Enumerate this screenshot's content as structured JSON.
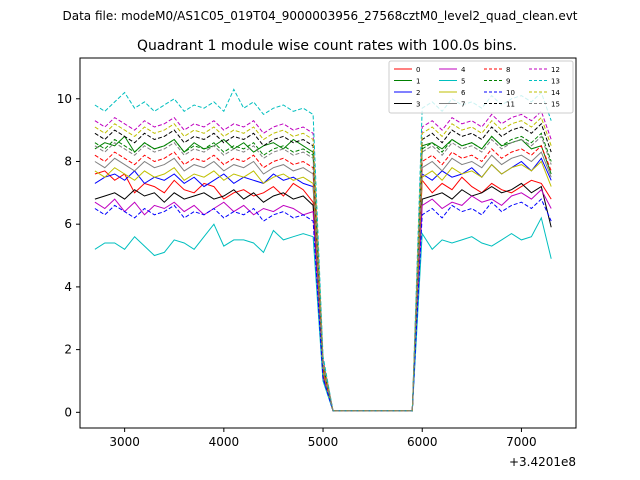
{
  "header": {
    "data_file": "Data file: modeM0/AS1C05_019T04_9000003956_27568cztM0_level2_quad_clean.evt"
  },
  "chart_data": {
    "type": "line",
    "title": "Quadrant 1 module wise count rates with 100.0s bins.",
    "xlabel": "",
    "ylabel": "",
    "x_offset_label": "+3.4201e8",
    "xlim": [
      2550,
      7550
    ],
    "ylim": [
      -0.5,
      11.3
    ],
    "xticks": [
      3000,
      4000,
      5000,
      6000,
      7000
    ],
    "yticks": [
      0,
      2,
      4,
      6,
      8,
      10
    ],
    "grid": false,
    "legend_position": "top-right",
    "legend_columns": 4,
    "x": [
      2700,
      2800,
      2900,
      3000,
      3100,
      3200,
      3300,
      3400,
      3500,
      3600,
      3700,
      3800,
      3900,
      4000,
      4100,
      4200,
      4300,
      4400,
      4500,
      4600,
      4700,
      4800,
      4900,
      5000,
      5100,
      5200,
      5300,
      5400,
      5500,
      5600,
      5700,
      5800,
      5900,
      6000,
      6100,
      6200,
      6300,
      6400,
      6500,
      6600,
      6700,
      6800,
      6900,
      7000,
      7100,
      7200,
      7300
    ],
    "series": [
      {
        "name": "0",
        "color": "#ff0000",
        "dash": "solid",
        "values": [
          7.6,
          7.7,
          7.4,
          7.6,
          7.0,
          7.3,
          7.2,
          7.0,
          7.4,
          7.1,
          7.0,
          7.3,
          7.2,
          6.8,
          7.0,
          7.1,
          6.9,
          7.0,
          7.2,
          6.9,
          7.3,
          7.1,
          6.7,
          1.2,
          0.05,
          0.05,
          0.05,
          0.05,
          0.05,
          0.05,
          0.05,
          0.05,
          0.05,
          7.4,
          7.0,
          7.3,
          7.1,
          7.5,
          7.2,
          7.0,
          7.3,
          7.1,
          7.0,
          7.2,
          7.4,
          7.3,
          6.8
        ]
      },
      {
        "name": "1",
        "color": "#008000",
        "dash": "solid",
        "values": [
          8.4,
          8.6,
          8.5,
          8.8,
          8.3,
          8.6,
          8.4,
          8.5,
          8.7,
          8.3,
          8.6,
          8.4,
          8.5,
          8.7,
          8.4,
          8.6,
          8.3,
          8.5,
          8.6,
          8.4,
          8.7,
          8.5,
          8.3,
          1.5,
          0.05,
          0.05,
          0.05,
          0.05,
          0.05,
          0.05,
          0.05,
          0.05,
          0.05,
          8.5,
          8.6,
          8.4,
          8.7,
          8.5,
          8.6,
          8.4,
          8.8,
          8.5,
          8.6,
          8.7,
          8.4,
          8.5,
          7.6
        ]
      },
      {
        "name": "2",
        "color": "#0000ff",
        "dash": "solid",
        "values": [
          7.3,
          7.5,
          7.6,
          7.4,
          7.7,
          7.3,
          7.5,
          7.4,
          7.6,
          7.3,
          7.5,
          7.2,
          7.4,
          7.6,
          7.3,
          7.5,
          7.4,
          7.3,
          7.6,
          7.4,
          7.5,
          7.3,
          7.2,
          1.3,
          0.05,
          0.05,
          0.05,
          0.05,
          0.05,
          0.05,
          0.05,
          0.05,
          0.05,
          7.6,
          7.4,
          7.7,
          7.5,
          7.6,
          7.8,
          7.5,
          7.9,
          7.6,
          7.8,
          8.0,
          7.7,
          8.1,
          7.4
        ]
      },
      {
        "name": "3",
        "color": "#000000",
        "dash": "solid",
        "values": [
          6.8,
          6.9,
          7.0,
          6.8,
          7.1,
          6.9,
          7.0,
          6.7,
          7.0,
          6.8,
          6.9,
          7.0,
          6.8,
          6.9,
          7.1,
          6.8,
          7.0,
          6.7,
          6.9,
          7.0,
          6.8,
          6.9,
          6.6,
          1.1,
          0.05,
          0.05,
          0.05,
          0.05,
          0.05,
          0.05,
          0.05,
          0.05,
          0.05,
          6.8,
          6.9,
          7.0,
          6.8,
          7.1,
          6.9,
          7.0,
          7.2,
          7.0,
          7.1,
          7.3,
          7.0,
          7.2,
          5.9
        ]
      },
      {
        "name": "4",
        "color": "#bf00bf",
        "dash": "solid",
        "values": [
          6.7,
          6.5,
          6.8,
          6.4,
          6.7,
          6.3,
          6.6,
          6.5,
          6.7,
          6.4,
          6.6,
          6.3,
          6.5,
          6.7,
          6.4,
          6.6,
          6.3,
          6.5,
          6.4,
          6.6,
          6.5,
          6.3,
          6.4,
          1.1,
          0.05,
          0.05,
          0.05,
          0.05,
          0.05,
          0.05,
          0.05,
          0.05,
          0.05,
          6.6,
          6.8,
          6.5,
          6.7,
          6.6,
          6.9,
          6.7,
          6.8,
          6.6,
          6.9,
          7.0,
          6.8,
          7.1,
          6.5
        ]
      },
      {
        "name": "5",
        "color": "#00bfbf",
        "dash": "solid",
        "values": [
          5.2,
          5.4,
          5.4,
          5.2,
          5.6,
          5.3,
          5.0,
          5.1,
          5.5,
          5.4,
          5.2,
          5.6,
          6.0,
          5.3,
          5.5,
          5.5,
          5.4,
          5.1,
          5.8,
          5.5,
          5.6,
          5.7,
          5.6,
          1.0,
          0.05,
          0.05,
          0.05,
          0.05,
          0.05,
          0.05,
          0.05,
          0.05,
          0.05,
          5.7,
          5.2,
          5.5,
          5.4,
          5.5,
          5.6,
          5.4,
          5.3,
          5.5,
          5.7,
          5.5,
          5.6,
          6.2,
          4.9
        ]
      },
      {
        "name": "6",
        "color": "#bfbf00",
        "dash": "solid",
        "values": [
          7.7,
          7.5,
          7.8,
          7.6,
          7.4,
          7.7,
          7.5,
          7.6,
          7.8,
          7.4,
          7.6,
          7.5,
          7.7,
          7.4,
          7.6,
          7.5,
          7.7,
          7.3,
          7.5,
          7.6,
          7.4,
          7.5,
          7.3,
          1.3,
          0.05,
          0.05,
          0.05,
          0.05,
          0.05,
          0.05,
          0.05,
          0.05,
          0.05,
          7.5,
          7.7,
          7.4,
          7.8,
          7.6,
          7.7,
          7.5,
          7.9,
          7.6,
          7.8,
          7.9,
          7.7,
          8.0,
          7.2
        ]
      },
      {
        "name": "7",
        "color": "#808080",
        "dash": "solid",
        "values": [
          8.0,
          7.8,
          8.1,
          7.9,
          7.7,
          8.0,
          7.8,
          7.9,
          8.1,
          7.7,
          7.9,
          7.8,
          8.0,
          7.7,
          7.9,
          7.8,
          8.0,
          7.6,
          7.8,
          7.9,
          7.7,
          7.8,
          7.6,
          1.4,
          0.05,
          0.05,
          0.05,
          0.05,
          0.05,
          0.05,
          0.05,
          0.05,
          0.05,
          7.8,
          8.0,
          7.7,
          8.1,
          7.9,
          8.0,
          7.8,
          8.2,
          7.9,
          8.1,
          8.2,
          8.0,
          8.3,
          7.5
        ]
      },
      {
        "name": "8",
        "color": "#ff0000",
        "dash": "dashed",
        "values": [
          8.2,
          8.0,
          8.3,
          8.1,
          7.9,
          8.2,
          8.0,
          8.1,
          8.3,
          7.9,
          8.1,
          8.0,
          8.2,
          7.9,
          8.1,
          8.0,
          8.2,
          7.8,
          8.0,
          8.1,
          7.9,
          8.0,
          7.8,
          1.4,
          0.05,
          0.05,
          0.05,
          0.05,
          0.05,
          0.05,
          0.05,
          0.05,
          0.05,
          8.0,
          8.2,
          7.9,
          8.3,
          8.1,
          8.2,
          8.0,
          8.4,
          8.1,
          8.3,
          8.4,
          8.2,
          8.5,
          7.7
        ]
      },
      {
        "name": "9",
        "color": "#008000",
        "dash": "dashed",
        "values": [
          8.6,
          8.4,
          8.7,
          8.5,
          8.3,
          8.6,
          8.4,
          8.5,
          8.7,
          8.3,
          8.5,
          8.4,
          8.6,
          8.3,
          8.5,
          8.4,
          8.6,
          8.2,
          8.4,
          8.5,
          8.3,
          8.4,
          8.2,
          1.5,
          0.05,
          0.05,
          0.05,
          0.05,
          0.05,
          0.05,
          0.05,
          0.05,
          0.05,
          8.4,
          8.6,
          8.3,
          8.7,
          8.5,
          8.6,
          8.4,
          8.8,
          8.5,
          8.7,
          8.8,
          8.6,
          8.9,
          8.0
        ]
      },
      {
        "name": "10",
        "color": "#0000ff",
        "dash": "dashed",
        "values": [
          6.5,
          6.3,
          6.6,
          6.4,
          6.2,
          6.5,
          6.3,
          6.4,
          6.6,
          6.2,
          6.4,
          6.3,
          6.5,
          6.2,
          6.4,
          6.3,
          6.5,
          6.1,
          6.3,
          6.4,
          6.2,
          6.3,
          6.1,
          1.1,
          0.05,
          0.05,
          0.05,
          0.05,
          0.05,
          0.05,
          0.05,
          0.05,
          0.05,
          6.3,
          6.5,
          6.2,
          6.6,
          6.4,
          6.5,
          6.3,
          6.7,
          6.4,
          6.6,
          6.7,
          6.5,
          6.8,
          6.1
        ]
      },
      {
        "name": "11",
        "color": "#000000",
        "dash": "dashed",
        "values": [
          8.9,
          8.7,
          9.0,
          8.8,
          8.6,
          8.9,
          8.7,
          8.8,
          9.0,
          8.6,
          8.8,
          8.7,
          8.9,
          8.6,
          8.8,
          8.7,
          8.9,
          8.5,
          8.7,
          8.8,
          8.6,
          8.7,
          8.5,
          1.6,
          0.05,
          0.05,
          0.05,
          0.05,
          0.05,
          0.05,
          0.05,
          0.05,
          0.05,
          8.7,
          8.9,
          8.6,
          9.0,
          8.8,
          8.9,
          8.7,
          9.1,
          8.8,
          9.0,
          9.1,
          8.9,
          9.2,
          8.3
        ]
      },
      {
        "name": "12",
        "color": "#bf00bf",
        "dash": "dashed",
        "values": [
          9.3,
          9.1,
          9.4,
          9.2,
          9.0,
          9.3,
          9.1,
          9.2,
          9.4,
          9.0,
          9.2,
          9.1,
          9.3,
          9.0,
          9.2,
          9.1,
          9.3,
          8.9,
          9.1,
          9.2,
          9.0,
          9.1,
          8.9,
          1.7,
          0.05,
          0.05,
          0.05,
          0.05,
          0.05,
          0.05,
          0.05,
          0.05,
          0.05,
          9.1,
          9.3,
          9.0,
          9.4,
          9.2,
          9.3,
          9.1,
          9.5,
          9.2,
          9.4,
          9.5,
          9.3,
          9.6,
          8.7
        ]
      },
      {
        "name": "13",
        "color": "#00bfbf",
        "dash": "dashed",
        "values": [
          9.8,
          9.6,
          9.9,
          10.2,
          9.7,
          9.9,
          9.6,
          9.8,
          10.0,
          9.6,
          9.8,
          9.7,
          9.9,
          9.6,
          10.3,
          9.7,
          9.9,
          9.5,
          9.7,
          9.8,
          9.6,
          9.7,
          9.5,
          1.8,
          0.05,
          0.05,
          0.05,
          0.05,
          0.05,
          0.05,
          0.05,
          0.05,
          0.05,
          9.7,
          9.9,
          9.6,
          10.0,
          9.8,
          9.9,
          9.7,
          10.1,
          9.8,
          10.0,
          10.1,
          9.9,
          10.2,
          9.3
        ]
      },
      {
        "name": "14",
        "color": "#bfbf00",
        "dash": "dashed",
        "values": [
          9.1,
          8.9,
          9.2,
          9.0,
          8.8,
          9.1,
          8.9,
          9.0,
          9.2,
          8.8,
          9.0,
          8.9,
          9.1,
          8.8,
          9.0,
          8.9,
          9.1,
          8.7,
          8.9,
          9.0,
          8.8,
          8.9,
          8.7,
          1.6,
          0.05,
          0.05,
          0.05,
          0.05,
          0.05,
          0.05,
          0.05,
          0.05,
          0.05,
          8.9,
          9.1,
          8.8,
          9.2,
          9.0,
          9.1,
          8.9,
          9.3,
          9.0,
          9.2,
          9.3,
          9.1,
          9.4,
          8.5
        ]
      },
      {
        "name": "15",
        "color": "#808080",
        "dash": "dashed",
        "values": [
          8.5,
          8.3,
          8.6,
          8.4,
          8.2,
          8.5,
          8.3,
          8.4,
          8.6,
          8.2,
          8.4,
          8.3,
          8.5,
          8.2,
          8.4,
          8.3,
          8.5,
          8.1,
          8.3,
          8.4,
          8.2,
          8.3,
          8.1,
          1.5,
          0.05,
          0.05,
          0.05,
          0.05,
          0.05,
          0.05,
          0.05,
          0.05,
          0.05,
          8.3,
          8.5,
          8.2,
          8.6,
          8.4,
          8.5,
          8.3,
          8.7,
          8.4,
          8.6,
          8.7,
          8.5,
          8.8,
          7.9
        ]
      }
    ]
  }
}
